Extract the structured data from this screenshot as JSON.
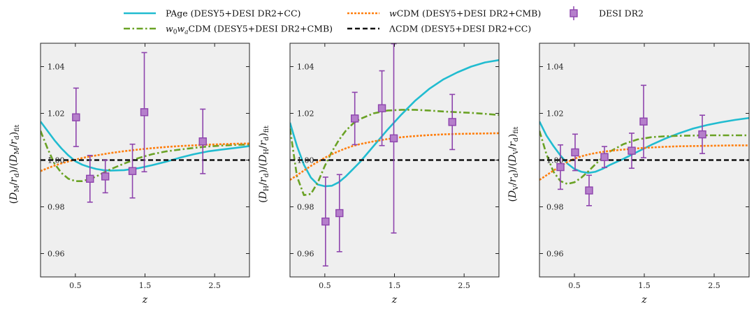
{
  "legend": [
    {
      "key": "page",
      "label": "PAge (DESY5+DESI DR2+CC)",
      "color": "#21bcd0",
      "style": "solid"
    },
    {
      "key": "w0wa",
      "label": "w0waCDM (DESY5+DESI DR2+CMB)",
      "color": "#6aa225",
      "style": "dashdot"
    },
    {
      "key": "wcdm",
      "label": "wCDM (DESY5+DESI DR2+CMB)",
      "color": "#ff7f0e",
      "style": "dotted"
    },
    {
      "key": "lcdm",
      "label": "ΛCDM (DESY5+DESI DR2+CC)",
      "color": "#111111",
      "style": "dashed"
    },
    {
      "key": "desi",
      "label": "DESI DR2",
      "color": "#8e44ad",
      "style": "marker"
    }
  ],
  "chart_data": [
    {
      "type": "line",
      "panel": "DM",
      "xlabel": "z",
      "ylabel": "(D_M/r_d)/(D_M/r_d)_fit",
      "xlim": [
        0.0,
        3.0
      ],
      "ylim": [
        0.95,
        1.05
      ],
      "xticks": [
        "0.5",
        "1.5",
        "2.5"
      ],
      "yticks": [
        "0.96",
        "0.98",
        "1.00",
        "1.02",
        "1.04"
      ],
      "x": [
        0.0,
        0.1,
        0.2,
        0.3,
        0.4,
        0.5,
        0.6,
        0.7,
        0.8,
        0.9,
        1.0,
        1.2,
        1.4,
        1.6,
        1.8,
        2.0,
        2.2,
        2.4,
        2.6,
        2.8,
        3.0
      ],
      "series": [
        {
          "name": "page",
          "values": [
            1.0165,
            1.0125,
            1.0085,
            1.005,
            1.002,
            0.9995,
            0.998,
            0.997,
            0.9962,
            0.9957,
            0.9955,
            0.9957,
            0.9965,
            0.9978,
            0.9993,
            1.001,
            1.0025,
            1.0037,
            1.0045,
            1.0052,
            1.006
          ]
        },
        {
          "name": "w0wa",
          "values": [
            1.0125,
            1.005,
            0.9985,
            0.9945,
            0.992,
            0.991,
            0.991,
            0.9918,
            0.993,
            0.9945,
            0.996,
            0.9985,
            1.0008,
            1.0025,
            1.0037,
            1.0045,
            1.0052,
            1.0058,
            1.0062,
            1.0065,
            1.0067
          ]
        },
        {
          "name": "wcdm",
          "values": [
            0.9953,
            0.9965,
            0.9976,
            0.9986,
            0.9994,
            1.0002,
            1.0009,
            1.0015,
            1.002,
            1.0025,
            1.003,
            1.0038,
            1.0045,
            1.0051,
            1.0056,
            1.006,
            1.0063,
            1.0066,
            1.0068,
            1.007,
            1.0071
          ]
        },
        {
          "name": "lcdm",
          "values": [
            1.0,
            1.0,
            1.0,
            1.0,
            1.0,
            1.0,
            1.0,
            1.0,
            1.0,
            1.0,
            1.0,
            1.0,
            1.0,
            1.0,
            1.0,
            1.0,
            1.0,
            1.0,
            1.0,
            1.0,
            1.0
          ]
        }
      ],
      "points": [
        {
          "z": 0.51,
          "y": 1.0183,
          "err": 0.0125
        },
        {
          "z": 0.71,
          "y": 0.992,
          "err": 0.01
        },
        {
          "z": 0.93,
          "y": 0.993,
          "err": 0.007
        },
        {
          "z": 1.32,
          "y": 0.9953,
          "err": 0.0115
        },
        {
          "z": 1.49,
          "y": 1.0205,
          "err": 0.0255
        },
        {
          "z": 2.33,
          "y": 1.008,
          "err": 0.0138
        }
      ]
    },
    {
      "type": "line",
      "panel": "DH",
      "xlabel": "z",
      "ylabel": "(D_H/r_d)/(D_H/r_d)_fit",
      "xlim": [
        0.0,
        3.0
      ],
      "ylim": [
        0.95,
        1.05
      ],
      "xticks": [
        "0.5",
        "1.5",
        "2.5"
      ],
      "yticks": [
        "0.96",
        "0.98",
        "1.00",
        "1.02",
        "1.04"
      ],
      "x": [
        0.0,
        0.1,
        0.2,
        0.3,
        0.4,
        0.5,
        0.6,
        0.7,
        0.8,
        0.9,
        1.0,
        1.2,
        1.4,
        1.6,
        1.8,
        2.0,
        2.2,
        2.4,
        2.6,
        2.8,
        3.0
      ],
      "series": [
        {
          "name": "page",
          "values": [
            1.016,
            1.006,
            0.998,
            0.9925,
            0.9895,
            0.9888,
            0.989,
            0.9905,
            0.993,
            0.996,
            0.999,
            1.006,
            1.013,
            1.0195,
            1.0255,
            1.0305,
            1.0345,
            1.0375,
            1.04,
            1.0418,
            1.0428
          ]
        },
        {
          "name": "w0wa",
          "values": [
            1.0135,
            0.993,
            0.985,
            0.9855,
            0.9905,
            0.9975,
            1.0035,
            1.0085,
            1.0125,
            1.0155,
            1.0175,
            1.02,
            1.0212,
            1.0215,
            1.0215,
            1.0212,
            1.0208,
            1.0205,
            1.0202,
            1.0198,
            1.0193
          ]
        },
        {
          "name": "wcdm",
          "values": [
            0.9915,
            0.9935,
            0.9955,
            0.9975,
            0.9993,
            1.001,
            1.0025,
            1.0038,
            1.005,
            1.006,
            1.0068,
            1.008,
            1.009,
            1.0098,
            1.0103,
            1.0107,
            1.011,
            1.0112,
            1.0113,
            1.0114,
            1.0115
          ]
        },
        {
          "name": "lcdm",
          "values": [
            1.0,
            1.0,
            1.0,
            1.0,
            1.0,
            1.0,
            1.0,
            1.0,
            1.0,
            1.0,
            1.0,
            1.0,
            1.0,
            1.0,
            1.0,
            1.0,
            1.0,
            1.0,
            1.0,
            1.0,
            1.0
          ]
        }
      ],
      "points": [
        {
          "z": 0.51,
          "y": 0.9737,
          "err": 0.019
        },
        {
          "z": 0.71,
          "y": 0.9773,
          "err": 0.0165
        },
        {
          "z": 0.93,
          "y": 1.0178,
          "err": 0.0112
        },
        {
          "z": 1.32,
          "y": 1.0222,
          "err": 0.016
        },
        {
          "z": 1.49,
          "y": 1.0093,
          "err": 0.0405
        },
        {
          "z": 2.33,
          "y": 1.0163,
          "err": 0.0118
        }
      ]
    },
    {
      "type": "line",
      "panel": "DV",
      "xlabel": "z",
      "ylabel": "(D_V/r_d)/(D_V/r_d)_fit",
      "xlim": [
        0.0,
        3.0
      ],
      "ylim": [
        0.95,
        1.05
      ],
      "xticks": [
        "0.5",
        "1.5",
        "2.5"
      ],
      "yticks": [
        "0.96",
        "0.98",
        "1.00",
        "1.02",
        "1.04"
      ],
      "x": [
        0.0,
        0.1,
        0.2,
        0.3,
        0.4,
        0.5,
        0.6,
        0.7,
        0.8,
        0.9,
        1.0,
        1.2,
        1.4,
        1.6,
        1.8,
        2.0,
        2.2,
        2.4,
        2.6,
        2.8,
        3.0
      ],
      "series": [
        {
          "name": "page",
          "values": [
            1.0165,
            1.0105,
            1.006,
            1.002,
            0.9985,
            0.9962,
            0.995,
            0.9945,
            0.995,
            0.9962,
            0.9978,
            1.0005,
            1.0035,
            1.0065,
            1.0092,
            1.0115,
            1.0135,
            1.015,
            1.0162,
            1.0172,
            1.018
          ]
        },
        {
          "name": "w0wa",
          "values": [
            1.0125,
            1.0025,
            0.995,
            0.991,
            0.9898,
            0.9905,
            0.9925,
            0.9952,
            0.9982,
            1.001,
            1.0035,
            1.0068,
            1.0088,
            1.0098,
            1.0102,
            1.0104,
            1.0105,
            1.0106,
            1.0106,
            1.0106,
            1.0106
          ]
        },
        {
          "name": "wcdm",
          "values": [
            0.9915,
            0.9935,
            0.9955,
            0.9975,
            0.9992,
            1.0006,
            1.0016,
            1.0024,
            1.003,
            1.0035,
            1.0039,
            1.0045,
            1.005,
            1.0054,
            1.0057,
            1.0059,
            1.006,
            1.0061,
            1.0062,
            1.0063,
            1.0063
          ]
        },
        {
          "name": "lcdm",
          "values": [
            1.0,
            1.0,
            1.0,
            1.0,
            1.0,
            1.0,
            1.0,
            1.0,
            1.0,
            1.0,
            1.0,
            1.0,
            1.0,
            1.0,
            1.0,
            1.0,
            1.0,
            1.0,
            1.0,
            1.0,
            1.0
          ]
        }
      ],
      "points": [
        {
          "z": 0.3,
          "y": 0.997,
          "err": 0.0095
        },
        {
          "z": 0.51,
          "y": 1.0033,
          "err": 0.0078
        },
        {
          "z": 0.71,
          "y": 0.987,
          "err": 0.0065
        },
        {
          "z": 0.93,
          "y": 1.0013,
          "err": 0.0045
        },
        {
          "z": 1.32,
          "y": 1.004,
          "err": 0.0075
        },
        {
          "z": 1.49,
          "y": 1.0165,
          "err": 0.0155
        },
        {
          "z": 2.33,
          "y": 1.011,
          "err": 0.0082
        }
      ]
    }
  ]
}
